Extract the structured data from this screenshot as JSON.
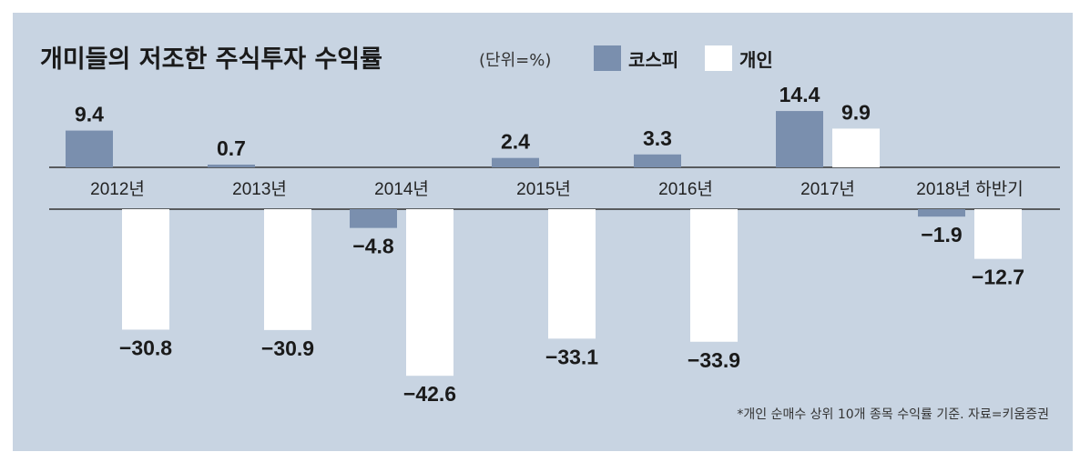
{
  "chart_data": {
    "type": "bar",
    "title": "개미들의 저조한 주식투자 수익률",
    "unit": "(단위=%)",
    "categories": [
      "2012년",
      "2013년",
      "2014년",
      "2015년",
      "2016년",
      "2017년",
      "2018년 하반기"
    ],
    "series": [
      {
        "name": "코스피",
        "color": "#7a8fae",
        "values": [
          9.4,
          0.7,
          -4.8,
          2.4,
          3.3,
          14.4,
          -1.9
        ],
        "labels": [
          "9.4",
          "0.7",
          "−4.8",
          "2.4",
          "3.3",
          "14.4",
          "−1.9"
        ]
      },
      {
        "name": "개인",
        "color": "#ffffff",
        "values": [
          -30.8,
          -30.9,
          -42.6,
          -33.1,
          -33.9,
          9.9,
          -12.7
        ],
        "labels": [
          "−30.8",
          "−30.9",
          "−42.6",
          "−33.1",
          "−33.9",
          "9.9",
          "−12.7"
        ]
      }
    ],
    "ylim": [
      -45,
      15
    ],
    "grid": false,
    "legend_position": "top, right of title",
    "note": "*개인 순매수 상위 10개 종목 수익률 기준. 자료=키움증권"
  },
  "colors": {
    "background": "#c8d4e2",
    "axis_line": "#333333"
  }
}
